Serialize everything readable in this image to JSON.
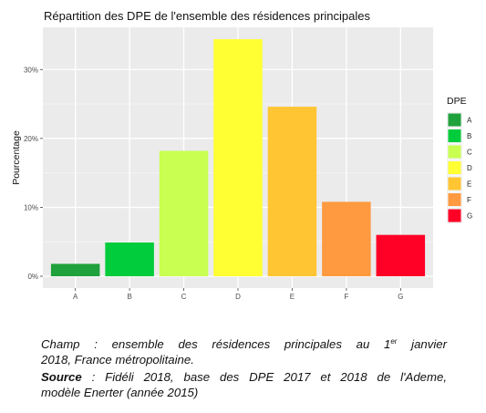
{
  "chart_data": {
    "type": "bar",
    "title": "Répartition des DPE de l'ensemble des résidences principales",
    "xlabel": "",
    "ylabel": "Pourcentage",
    "categories": [
      "A",
      "B",
      "C",
      "D",
      "E",
      "F",
      "G"
    ],
    "values": [
      1.8,
      4.9,
      18.2,
      34.4,
      24.6,
      10.8,
      6.0
    ],
    "ylim": [
      -1.72,
      36.12
    ],
    "yticks": [
      0,
      10,
      20,
      30
    ],
    "ytick_labels": [
      "0%",
      "10%",
      "20%",
      "30%"
    ],
    "colors": [
      "#1fa13b",
      "#00cc3c",
      "#c8ff50",
      "#ffff33",
      "#ffc533",
      "#ff9a40",
      "#ff0026"
    ],
    "grid": true,
    "legend": {
      "title": "DPE",
      "position": "right",
      "labels": [
        "A",
        "B",
        "C",
        "D",
        "E",
        "F",
        "G"
      ]
    }
  },
  "caption": {
    "champ_line1": "Champ : ensemble des résidences principales au 1",
    "champ_sup": "er",
    "champ_line1_end": " janvier",
    "champ_line2": "2018, France métropolitaine.",
    "source_label": "Source",
    "source_line1": " : Fidéli 2018, base des DPE 2017 et 2018 de l'Ademe,",
    "source_line2": "modèle Enerter (année 2015)"
  }
}
